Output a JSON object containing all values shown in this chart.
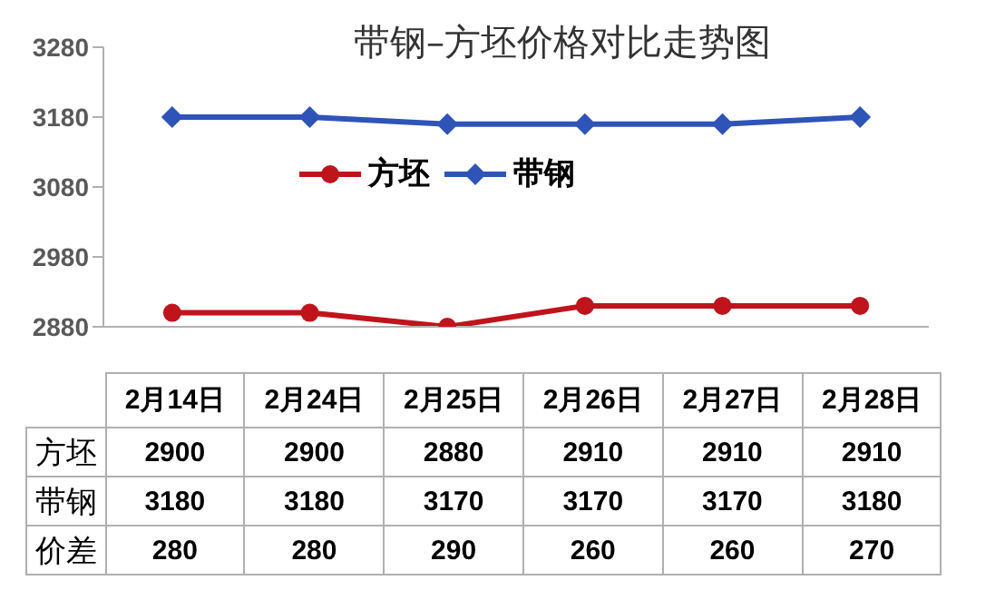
{
  "chart_data": {
    "type": "line",
    "title": "带钢–方坯价格对比走势图",
    "categories": [
      "2月14日",
      "2月24日",
      "2月25日",
      "2月26日",
      "2月27日",
      "2月28日"
    ],
    "series": [
      {
        "name": "方坯",
        "color": "#c0141c",
        "marker": "circle",
        "values": [
          2900,
          2900,
          2880,
          2910,
          2910,
          2910
        ]
      },
      {
        "name": "带钢",
        "color": "#2e54b8",
        "marker": "diamond",
        "values": [
          3180,
          3180,
          3170,
          3170,
          3170,
          3180
        ]
      }
    ],
    "annotations": [
      "价差",
      "280",
      "280",
      "290",
      "260",
      "260",
      "270"
    ],
    "ylim": [
      2880,
      3280
    ],
    "yticks": [
      2880,
      2980,
      3080,
      3180,
      3280
    ],
    "legend": "top",
    "data_labels": true
  }
}
